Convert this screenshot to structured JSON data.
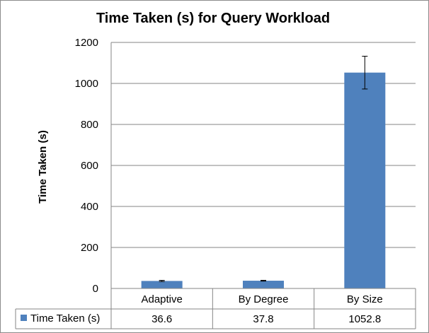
{
  "chart_data": {
    "type": "bar",
    "title": "Time Taken (s) for Query Workload",
    "ylabel": "Time Taken (s)",
    "xlabel": "",
    "ylim": [
      0,
      1200
    ],
    "yticks": [
      0,
      200,
      400,
      600,
      800,
      1000,
      1200
    ],
    "grid": true,
    "categories": [
      "Adaptive",
      "By Degree",
      "By Size"
    ],
    "series": [
      {
        "name": "Time Taken (s)",
        "color": "#4f81bd",
        "values": [
          36.6,
          37.8,
          1052.8
        ],
        "error": [
          3,
          2,
          80
        ]
      }
    ],
    "data_table": {
      "values_text": [
        "36.6",
        "37.8",
        "1052.8"
      ]
    },
    "legend_placement": "data-table"
  }
}
